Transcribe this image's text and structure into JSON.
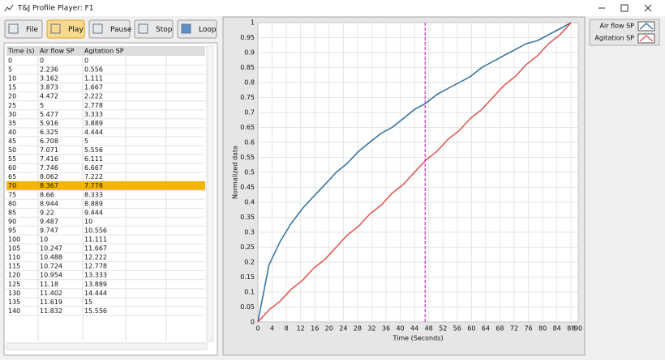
{
  "window": {
    "title": "T&J Profile Player: F1"
  },
  "toolbar": {
    "buttons": [
      "File",
      "Play",
      "Pause",
      "Stop",
      "Loop"
    ],
    "active": 1
  },
  "table": {
    "columns": [
      "Time (s)",
      "Air flow SP",
      "Agitation SP"
    ],
    "selected_row": 14,
    "rows": [
      [
        0,
        0,
        0
      ],
      [
        5,
        2.236,
        0.556
      ],
      [
        10,
        3.162,
        1.111
      ],
      [
        15,
        3.873,
        1.667
      ],
      [
        20,
        4.472,
        2.222
      ],
      [
        25,
        5,
        2.778
      ],
      [
        30,
        5.477,
        3.333
      ],
      [
        35,
        5.916,
        3.889
      ],
      [
        40,
        6.325,
        4.444
      ],
      [
        45,
        6.708,
        5
      ],
      [
        50,
        7.071,
        5.556
      ],
      [
        55,
        7.416,
        6.111
      ],
      [
        60,
        7.746,
        6.667
      ],
      [
        65,
        8.062,
        7.222
      ],
      [
        70,
        8.367,
        7.778
      ],
      [
        75,
        8.66,
        8.333
      ],
      [
        80,
        8.944,
        8.889
      ],
      [
        85,
        9.22,
        9.444
      ],
      [
        90,
        9.487,
        10
      ],
      [
        95,
        9.747,
        10.556
      ],
      [
        100,
        10,
        11.111
      ],
      [
        105,
        10.247,
        11.667
      ],
      [
        110,
        10.488,
        12.222
      ],
      [
        115,
        10.724,
        12.778
      ],
      [
        120,
        10.954,
        13.333
      ],
      [
        125,
        11.18,
        13.889
      ],
      [
        130,
        11.402,
        14.444
      ],
      [
        135,
        11.619,
        15
      ],
      [
        140,
        11.832,
        15.556
      ]
    ]
  },
  "chart_data": {
    "type": "line",
    "xlabel": "Time (Seconds)",
    "ylabel": "Normalized data",
    "x": [
      0,
      3.1,
      6.3,
      9.4,
      12.6,
      15.7,
      18.9,
      22,
      25.1,
      28.3,
      31.4,
      34.6,
      37.7,
      40.9,
      44,
      47.1,
      50.3,
      53.4,
      56.6,
      59.7,
      62.9,
      66,
      69.1,
      72.3,
      75.4,
      78.6,
      81.7,
      84.9,
      88
    ],
    "series": [
      {
        "name": "Air flow SP",
        "color": "#2e6e9e",
        "values": [
          0,
          0.19,
          0.27,
          0.33,
          0.38,
          0.42,
          0.46,
          0.5,
          0.53,
          0.57,
          0.6,
          0.63,
          0.65,
          0.68,
          0.71,
          0.73,
          0.76,
          0.78,
          0.8,
          0.82,
          0.85,
          0.87,
          0.89,
          0.91,
          0.93,
          0.94,
          0.96,
          0.98,
          1
        ]
      },
      {
        "name": "Agitation SP",
        "color": "#e0504a",
        "values": [
          0,
          0.04,
          0.07,
          0.11,
          0.14,
          0.18,
          0.21,
          0.25,
          0.29,
          0.32,
          0.36,
          0.39,
          0.43,
          0.46,
          0.5,
          0.54,
          0.57,
          0.61,
          0.64,
          0.68,
          0.71,
          0.75,
          0.79,
          0.82,
          0.86,
          0.89,
          0.93,
          0.96,
          1
        ]
      }
    ],
    "cursor_x": 47,
    "cursor_color": "#cc22cc",
    "xlim": [
      0,
      90
    ],
    "ylim": [
      0,
      1
    ],
    "xticks": [
      0,
      4,
      8,
      12,
      16,
      20,
      24,
      28,
      32,
      36,
      40,
      44,
      48,
      52,
      56,
      60,
      64,
      68,
      72,
      76,
      80,
      84,
      88,
      90
    ],
    "yticks": [
      0,
      0.05,
      0.1,
      0.15,
      0.2,
      0.25,
      0.3,
      0.35,
      0.4,
      0.45,
      0.5,
      0.55,
      0.6,
      0.65,
      0.7,
      0.75,
      0.8,
      0.85,
      0.9,
      0.95,
      1
    ],
    "grid": true
  }
}
